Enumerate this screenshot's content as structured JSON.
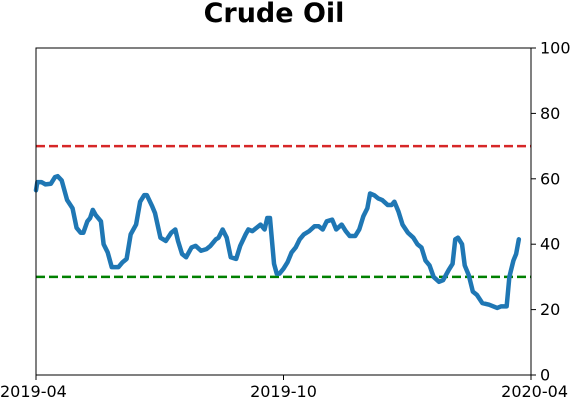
{
  "chart_data": {
    "type": "line",
    "title": "Crude Oil",
    "xlabel": "",
    "ylabel": "",
    "x_range": [
      "2019-04-01",
      "2020-04-01"
    ],
    "x_ticks": [
      {
        "label": "2019-04",
        "date": "2019-04-01"
      },
      {
        "label": "2019-10",
        "date": "2019-10-01"
      },
      {
        "label": "2020-04",
        "date": "2020-04-01"
      }
    ],
    "ylim": [
      0,
      100
    ],
    "y_ticks": [
      0,
      20,
      40,
      60,
      80,
      100
    ],
    "y_axis_side": "right",
    "grid": false,
    "legend": "none",
    "reference_lines": [
      {
        "y": 70,
        "color": "#d62728",
        "style": "dashed"
      },
      {
        "y": 30,
        "color": "#008000",
        "style": "dashed"
      }
    ],
    "series": [
      {
        "color": "#1f77b4",
        "points": [
          [
            "2019-04-01",
            56.5
          ],
          [
            "2019-04-02",
            59.0
          ],
          [
            "2019-04-05",
            59.0
          ],
          [
            "2019-04-08",
            58.3
          ],
          [
            "2019-04-12",
            58.5
          ],
          [
            "2019-04-15",
            60.5
          ],
          [
            "2019-04-17",
            60.8
          ],
          [
            "2019-04-20",
            59.5
          ],
          [
            "2019-04-24",
            53.5
          ],
          [
            "2019-04-28",
            51.0
          ],
          [
            "2019-05-01",
            45.0
          ],
          [
            "2019-05-04",
            43.5
          ],
          [
            "2019-05-06",
            43.5
          ],
          [
            "2019-05-09",
            47.0
          ],
          [
            "2019-05-11",
            48.0
          ],
          [
            "2019-05-13",
            50.5
          ],
          [
            "2019-05-15",
            49.0
          ],
          [
            "2019-05-19",
            47.0
          ],
          [
            "2019-05-21",
            40.0
          ],
          [
            "2019-05-24",
            37.5
          ],
          [
            "2019-05-27",
            33.0
          ],
          [
            "2019-06-01",
            33.0
          ],
          [
            "2019-06-04",
            34.5
          ],
          [
            "2019-06-07",
            35.5
          ],
          [
            "2019-06-10",
            43.0
          ],
          [
            "2019-06-14",
            46.0
          ],
          [
            "2019-06-17",
            53.0
          ],
          [
            "2019-06-20",
            55.0
          ],
          [
            "2019-06-22",
            55.0
          ],
          [
            "2019-06-26",
            51.5
          ],
          [
            "2019-06-28",
            49.5
          ],
          [
            "2019-07-02",
            42.0
          ],
          [
            "2019-07-06",
            41.0
          ],
          [
            "2019-07-10",
            43.5
          ],
          [
            "2019-07-13",
            44.5
          ],
          [
            "2019-07-15",
            41.0
          ],
          [
            "2019-07-18",
            37.0
          ],
          [
            "2019-07-21",
            36.0
          ],
          [
            "2019-07-25",
            39.0
          ],
          [
            "2019-07-28",
            39.5
          ],
          [
            "2019-08-01",
            38.0
          ],
          [
            "2019-08-05",
            38.5
          ],
          [
            "2019-08-08",
            39.5
          ],
          [
            "2019-08-12",
            41.5
          ],
          [
            "2019-08-14",
            42.0
          ],
          [
            "2019-08-17",
            44.5
          ],
          [
            "2019-08-20",
            42.0
          ],
          [
            "2019-08-23",
            36.0
          ],
          [
            "2019-08-27",
            35.5
          ],
          [
            "2019-08-30",
            39.5
          ],
          [
            "2019-09-03",
            43.0
          ],
          [
            "2019-09-05",
            44.5
          ],
          [
            "2019-09-08",
            44.0
          ],
          [
            "2019-09-11",
            45.0
          ],
          [
            "2019-09-14",
            46.0
          ],
          [
            "2019-09-17",
            44.5
          ],
          [
            "2019-09-19",
            48.0
          ],
          [
            "2019-09-21",
            48.0
          ],
          [
            "2019-09-24",
            34.0
          ],
          [
            "2019-09-26",
            31.0
          ],
          [
            "2019-09-28",
            31.0
          ],
          [
            "2019-10-01",
            32.5
          ],
          [
            "2019-10-04",
            34.5
          ],
          [
            "2019-10-07",
            37.5
          ],
          [
            "2019-10-10",
            39.0
          ],
          [
            "2019-10-13",
            41.5
          ],
          [
            "2019-10-16",
            43.0
          ],
          [
            "2019-10-20",
            44.0
          ],
          [
            "2019-10-24",
            45.5
          ],
          [
            "2019-10-27",
            45.5
          ],
          [
            "2019-10-30",
            44.5
          ],
          [
            "2019-11-02",
            47.0
          ],
          [
            "2019-11-06",
            47.5
          ],
          [
            "2019-11-09",
            44.5
          ],
          [
            "2019-11-13",
            46.0
          ],
          [
            "2019-11-16",
            44.0
          ],
          [
            "2019-11-19",
            42.5
          ],
          [
            "2019-11-23",
            42.5
          ],
          [
            "2019-11-26",
            44.5
          ],
          [
            "2019-11-29",
            48.5
          ],
          [
            "2019-12-02",
            51.0
          ],
          [
            "2019-12-04",
            55.5
          ],
          [
            "2019-12-07",
            55.0
          ],
          [
            "2019-12-10",
            54.0
          ],
          [
            "2019-12-13",
            53.5
          ],
          [
            "2019-12-17",
            52.0
          ],
          [
            "2019-12-20",
            52.0
          ],
          [
            "2019-12-22",
            53.0
          ],
          [
            "2019-12-25",
            50.0
          ],
          [
            "2019-12-28",
            46.0
          ],
          [
            "2020-01-01",
            43.5
          ],
          [
            "2020-01-05",
            42.0
          ],
          [
            "2020-01-08",
            40.0
          ],
          [
            "2020-01-11",
            39.0
          ],
          [
            "2020-01-14",
            35.0
          ],
          [
            "2020-01-17",
            33.5
          ],
          [
            "2020-01-20",
            30.0
          ],
          [
            "2020-01-24",
            28.5
          ],
          [
            "2020-01-27",
            29.0
          ],
          [
            "2020-01-31",
            32.0
          ],
          [
            "2020-02-03",
            34.0
          ],
          [
            "2020-02-05",
            41.5
          ],
          [
            "2020-02-07",
            42.0
          ],
          [
            "2020-02-10",
            40.0
          ],
          [
            "2020-02-12",
            33.5
          ],
          [
            "2020-02-15",
            30.5
          ],
          [
            "2020-02-18",
            25.5
          ],
          [
            "2020-02-21",
            24.5
          ],
          [
            "2020-02-25",
            22.0
          ],
          [
            "2020-03-01",
            21.5
          ],
          [
            "2020-03-04",
            21.0
          ],
          [
            "2020-03-07",
            20.5
          ],
          [
            "2020-03-10",
            21.0
          ],
          [
            "2020-03-14",
            21.0
          ],
          [
            "2020-03-16",
            30.0
          ],
          [
            "2020-03-19",
            35.0
          ],
          [
            "2020-03-21",
            37.0
          ],
          [
            "2020-03-23",
            41.5
          ]
        ]
      }
    ]
  }
}
